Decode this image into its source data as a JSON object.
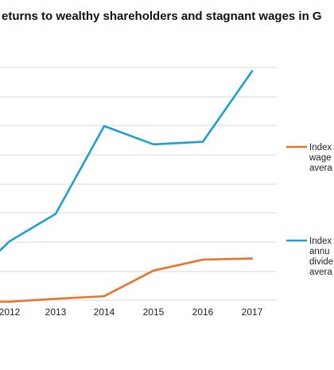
{
  "chart_data": {
    "type": "line",
    "title": "eturns to wealthy shareholders and stagnant wages in G",
    "categories": [
      "2012",
      "2013",
      "2014",
      "2015",
      "2016",
      "2017"
    ],
    "ylim": [
      0,
      640
    ],
    "grid": true,
    "legend_position": "right",
    "series": [
      {
        "name": "Index wage avera",
        "name_lines": [
          "Index",
          "wage",
          "avera"
        ],
        "color": "#e8732a",
        "values": [
          0,
          8,
          15,
          85,
          115,
          118
        ],
        "start_value": 0
      },
      {
        "name": "Index annu divide avera",
        "name_lines": [
          "Index",
          "annu",
          "divide",
          "avera"
        ],
        "color": "#1f9fd1",
        "values": [
          165,
          240,
          480,
          430,
          437,
          630
        ],
        "start_value": 140
      }
    ]
  }
}
